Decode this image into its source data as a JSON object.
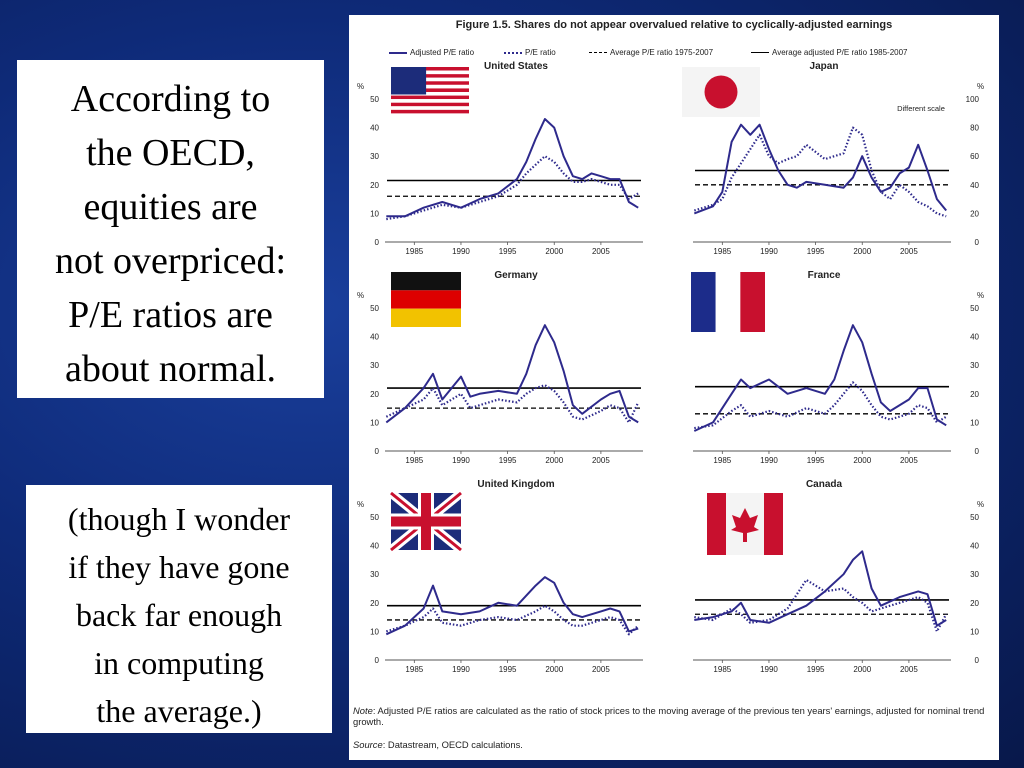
{
  "left_text": {
    "main_lines": [
      "According to",
      "the OECD,",
      "equities are",
      "not overpriced:",
      "P/E ratios are",
      "about normal."
    ],
    "aside_lines": [
      "(though I wonder",
      "if  they have gone",
      "back far enough",
      "in computing",
      "the average.)"
    ]
  },
  "figure": {
    "title": "Figure 1.5. Shares do not appear overvalued relative to cyclically-adjusted earnings",
    "note_label": "Note",
    "note_text": ": Adjusted P/E ratios are calculated as the ratio of stock prices to the moving average of the previous ten years' earnings, adjusted for nominal trend growth.",
    "source_label": "Source",
    "source_text": ": Datastream, OECD calculations."
  },
  "legend": [
    {
      "label": "Adjusted P/E ratio",
      "style": "solid-thick"
    },
    {
      "label": "P/E ratio",
      "style": "dotted"
    },
    {
      "label": "Average P/E ratio 1975-2007",
      "style": "dashed"
    },
    {
      "label": "Average adjusted P/E ratio 1985-2007",
      "style": "solid-thin"
    }
  ],
  "colors": {
    "series": "#2e2a8c",
    "average": "#000000"
  },
  "chart_data": [
    {
      "type": "line",
      "title": "United States",
      "unit": "%",
      "axis_side": "left",
      "flag": "us-flag",
      "x": [
        1982,
        1984,
        1986,
        1988,
        1990,
        1992,
        1994,
        1996,
        1997,
        1998,
        1999,
        2000,
        2001,
        2002,
        2003,
        2004,
        2005,
        2006,
        2007,
        2008,
        2009
      ],
      "series": [
        {
          "name": "Adjusted P/E ratio",
          "values": [
            9,
            9,
            12,
            14,
            12,
            15,
            17,
            22,
            28,
            36,
            43,
            40,
            30,
            23,
            22,
            24,
            23,
            22,
            22,
            14,
            12
          ]
        },
        {
          "name": "P/E ratio",
          "values": [
            8,
            9,
            11,
            13,
            12,
            14,
            16,
            20,
            24,
            27,
            30,
            28,
            24,
            21,
            21,
            22,
            21,
            20,
            20,
            15,
            17
          ]
        }
      ],
      "average_pe": 16,
      "average_adjusted_pe": 21.5,
      "yticks": [
        0,
        10,
        20,
        30,
        40,
        50
      ],
      "ylim": [
        0,
        50
      ],
      "xticks": [
        1985,
        1990,
        1995,
        2000,
        2005
      ]
    },
    {
      "type": "line",
      "title": "Japan",
      "unit": "%",
      "axis_side": "right",
      "annotation": "Different scale",
      "flag": "japan-flag",
      "x": [
        1982,
        1984,
        1985,
        1986,
        1987,
        1988,
        1989,
        1990,
        1991,
        1992,
        1993,
        1994,
        1996,
        1998,
        1999,
        2000,
        2001,
        2002,
        2003,
        2004,
        2005,
        2006,
        2007,
        2008,
        2009
      ],
      "series": [
        {
          "name": "Adjusted P/E ratio",
          "values": [
            20,
            25,
            35,
            70,
            82,
            75,
            82,
            65,
            50,
            40,
            38,
            42,
            40,
            38,
            45,
            60,
            45,
            35,
            38,
            48,
            52,
            68,
            50,
            30,
            22
          ]
        },
        {
          "name": "P/E ratio",
          "values": [
            22,
            26,
            30,
            45,
            55,
            65,
            75,
            60,
            55,
            58,
            60,
            68,
            58,
            62,
            80,
            75,
            50,
            35,
            30,
            40,
            35,
            28,
            25,
            20,
            18
          ]
        }
      ],
      "average_pe": 40,
      "average_adjusted_pe": 50,
      "yticks": [
        0,
        20,
        40,
        60,
        80,
        100
      ],
      "ylim": [
        0,
        100
      ],
      "xticks": [
        1985,
        1990,
        1995,
        2000,
        2005
      ]
    },
    {
      "type": "line",
      "title": "Germany",
      "unit": "%",
      "axis_side": "left",
      "flag": "germany-flag",
      "x": [
        1982,
        1984,
        1986,
        1987,
        1988,
        1990,
        1991,
        1992,
        1994,
        1996,
        1997,
        1998,
        1999,
        2000,
        2001,
        2002,
        2003,
        2005,
        2006,
        2007,
        2008,
        2009
      ],
      "series": [
        {
          "name": "Adjusted P/E ratio",
          "values": [
            10,
            15,
            22,
            27,
            18,
            26,
            19,
            20,
            21,
            20,
            27,
            37,
            44,
            38,
            28,
            16,
            13,
            18,
            20,
            21,
            12,
            10
          ]
        },
        {
          "name": "P/E ratio",
          "values": [
            12,
            15,
            18,
            22,
            16,
            20,
            15,
            16,
            18,
            17,
            20,
            22,
            23,
            21,
            17,
            12,
            11,
            14,
            16,
            15,
            10,
            17
          ]
        }
      ],
      "average_pe": 15,
      "average_adjusted_pe": 22,
      "yticks": [
        0,
        10,
        20,
        30,
        40,
        50
      ],
      "ylim": [
        0,
        50
      ],
      "xticks": [
        1985,
        1990,
        1995,
        2000,
        2005
      ]
    },
    {
      "type": "line",
      "title": "France",
      "unit": "%",
      "axis_side": "right",
      "flag": "france-flag",
      "x": [
        1982,
        1984,
        1986,
        1987,
        1988,
        1990,
        1992,
        1994,
        1996,
        1997,
        1998,
        1999,
        2000,
        2001,
        2002,
        2003,
        2005,
        2006,
        2007,
        2008,
        2009
      ],
      "series": [
        {
          "name": "Adjusted P/E ratio",
          "values": [
            7,
            10,
            20,
            25,
            22,
            25,
            20,
            22,
            20,
            25,
            35,
            44,
            38,
            27,
            17,
            14,
            18,
            22,
            22,
            11,
            9
          ]
        },
        {
          "name": "P/E ratio",
          "values": [
            8,
            9,
            14,
            16,
            12,
            14,
            12,
            15,
            13,
            16,
            20,
            24,
            21,
            16,
            12,
            11,
            13,
            16,
            15,
            10,
            12
          ]
        }
      ],
      "average_pe": 13,
      "average_adjusted_pe": 22.5,
      "yticks": [
        0,
        10,
        20,
        30,
        40,
        50
      ],
      "ylim": [
        0,
        50
      ],
      "xticks": [
        1985,
        1990,
        1995,
        2000,
        2005
      ]
    },
    {
      "type": "line",
      "title": "United Kingdom",
      "unit": "%",
      "axis_side": "left",
      "flag": "uk-flag",
      "x": [
        1982,
        1984,
        1986,
        1987,
        1988,
        1990,
        1992,
        1994,
        1996,
        1998,
        1999,
        2000,
        2001,
        2002,
        2003,
        2005,
        2006,
        2007,
        2008,
        2009
      ],
      "series": [
        {
          "name": "Adjusted P/E ratio",
          "values": [
            9,
            12,
            18,
            26,
            17,
            16,
            17,
            20,
            19,
            26,
            29,
            27,
            20,
            16,
            15,
            17,
            18,
            17,
            10,
            11
          ]
        },
        {
          "name": "P/E ratio",
          "values": [
            10,
            12,
            15,
            18,
            13,
            12,
            14,
            15,
            14,
            17,
            19,
            17,
            14,
            12,
            12,
            14,
            15,
            14,
            9,
            12
          ]
        }
      ],
      "average_pe": 14,
      "average_adjusted_pe": 19,
      "yticks": [
        0,
        10,
        20,
        30,
        40,
        50
      ],
      "ylim": [
        0,
        50
      ],
      "xticks": [
        1985,
        1990,
        1995,
        2000,
        2005
      ]
    },
    {
      "type": "line",
      "title": "Canada",
      "unit": "%",
      "axis_side": "right",
      "flag": "canada-flag",
      "x": [
        1982,
        1984,
        1986,
        1987,
        1988,
        1990,
        1992,
        1994,
        1996,
        1998,
        1999,
        2000,
        2001,
        2002,
        2004,
        2006,
        2007,
        2008,
        2009
      ],
      "series": [
        {
          "name": "Adjusted P/E ratio",
          "values": [
            14,
            15,
            17,
            20,
            14,
            13,
            16,
            19,
            24,
            30,
            35,
            38,
            25,
            19,
            22,
            24,
            23,
            12,
            14
          ]
        },
        {
          "name": "P/E ratio",
          "values": [
            15,
            14,
            18,
            16,
            13,
            14,
            18,
            28,
            24,
            25,
            22,
            20,
            17,
            18,
            20,
            22,
            20,
            10,
            16
          ]
        }
      ],
      "average_pe": 16,
      "average_adjusted_pe": 21,
      "yticks": [
        0,
        10,
        20,
        30,
        40,
        50
      ],
      "ylim": [
        0,
        50
      ],
      "xticks": [
        1985,
        1990,
        1995,
        2000,
        2005
      ]
    }
  ]
}
